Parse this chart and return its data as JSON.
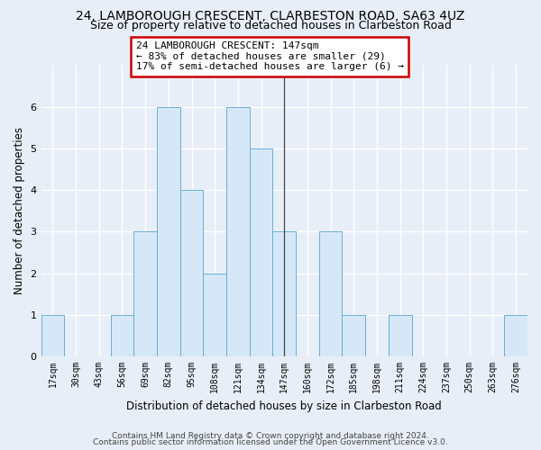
{
  "title": "24, LAMBOROUGH CRESCENT, CLARBESTON ROAD, SA63 4UZ",
  "subtitle": "Size of property relative to detached houses in Clarbeston Road",
  "xlabel": "Distribution of detached houses by size in Clarbeston Road",
  "ylabel": "Number of detached properties",
  "bin_labels": [
    "17sqm",
    "30sqm",
    "43sqm",
    "56sqm",
    "69sqm",
    "82sqm",
    "95sqm",
    "108sqm",
    "121sqm",
    "134sqm",
    "147sqm",
    "160sqm",
    "172sqm",
    "185sqm",
    "198sqm",
    "211sqm",
    "224sqm",
    "237sqm",
    "250sqm",
    "263sqm",
    "276sqm"
  ],
  "bar_heights": [
    1,
    0,
    0,
    1,
    3,
    6,
    4,
    2,
    6,
    5,
    3,
    0,
    3,
    1,
    0,
    1,
    0,
    0,
    0,
    0,
    1
  ],
  "bar_color": "#d6e8f7",
  "bar_edge_color": "#6aaed6",
  "marker_index": 10,
  "annotation_line0": "24 LAMBOROUGH CRESCENT: 147sqm",
  "annotation_line1": "← 83% of detached houses are smaller (29)",
  "annotation_line2": "17% of semi-detached houses are larger (6) →",
  "annotation_box_color": "#ffffff",
  "annotation_box_edge": "#cc0000",
  "ylim": [
    0,
    7
  ],
  "yticks": [
    0,
    1,
    2,
    3,
    4,
    5,
    6
  ],
  "footer_line1": "Contains HM Land Registry data © Crown copyright and database right 2024.",
  "footer_line2": "Contains public sector information licensed under the Open Government Licence v3.0.",
  "bg_color": "#e8eef7",
  "plot_bg_color": "#e8eef7",
  "grid_color": "#ffffff",
  "title_fontsize": 10,
  "subtitle_fontsize": 9,
  "tick_fontsize": 7,
  "ylabel_fontsize": 8.5,
  "xlabel_fontsize": 8.5,
  "annotation_fontsize": 8,
  "footer_fontsize": 6.5
}
